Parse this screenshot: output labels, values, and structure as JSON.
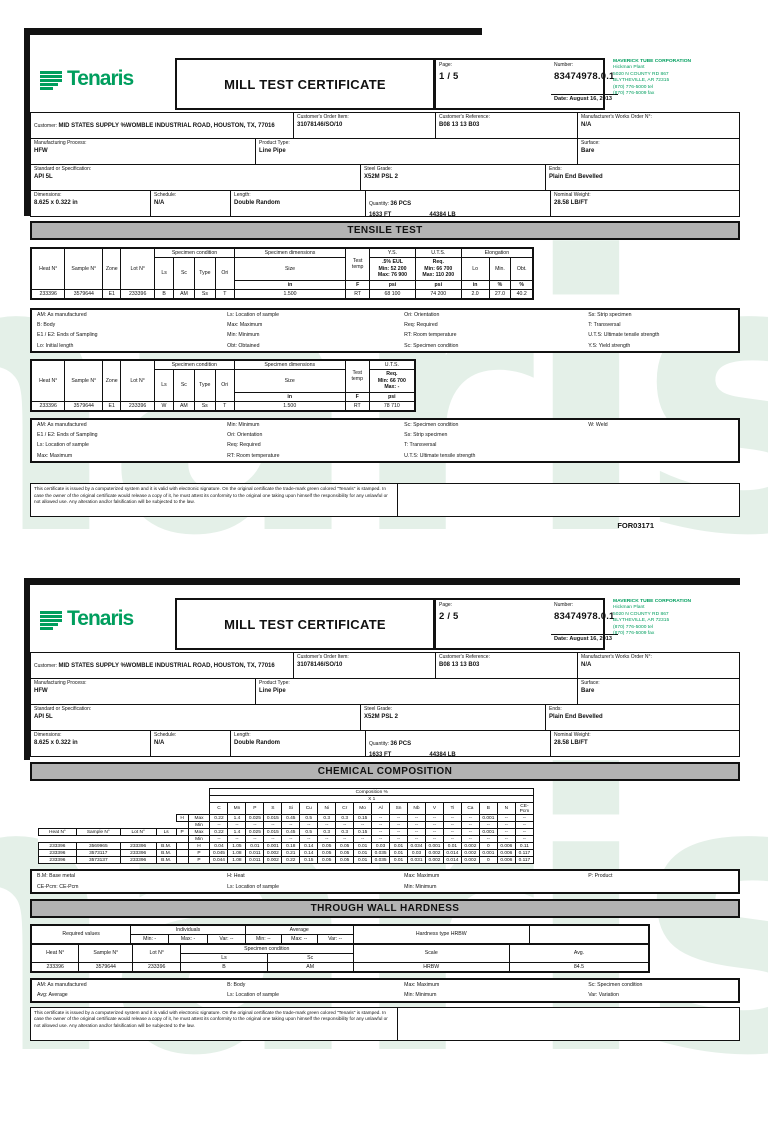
{
  "watermark": "Tenaris",
  "company": {
    "name": "Tenaris",
    "address": [
      "MAVERICK TUBE CORPORATION",
      "Hickman Plant",
      "5020 N COUNTY RD 867",
      "BLYTHEVILLE, AR 72315",
      "(870) 776-5000 tel",
      "(870) 776-5009 fax"
    ]
  },
  "cert": {
    "title": "MILL TEST CERTIFICATE",
    "number_label": "Number:",
    "number": "83474978.0.1",
    "page_label": "Page:",
    "page1": "1 / 5",
    "page2": "2 / 5",
    "date": "Date: August 16, 2013"
  },
  "info": {
    "customer_label": "Customer: ",
    "customer": "MID STATES SUPPLY %WOMBLE INDUSTRIAL ROAD, HOUSTON, TX, 77016",
    "order_item_label": "Customer's Order Item:",
    "order_item": "31078146/SO/10",
    "reference_label": "Customer's Reference:",
    "reference": "B08 13 13 B03",
    "works_order_label": "Manufacturer's Works Order N°:",
    "works_order": "N/A",
    "process_label": "Manufacturing Process:",
    "process": "HFW",
    "product_type_label": "Product Type:",
    "product_type": "Line Pipe",
    "surface_label": "Surface:",
    "surface": "Bare",
    "spec_label": "Standard or Specification:",
    "spec": "API 5L",
    "grade_label": "Steel Grade:",
    "grade": "X52M PSL 2",
    "ends_label": "Ends:",
    "ends": "Plain End Bevelled",
    "dimensions_label": "Dimensions:",
    "dimensions": "8.625 x 0.322 in",
    "schedule_label": "Schedule:",
    "schedule": "N/A",
    "length_label": "Length:",
    "length": "Double Random",
    "quantity_label": "Quantity: ",
    "quantity_pcs": "36 PCS",
    "quantity_ft": "1633 FT",
    "quantity_lb": "44384 LB",
    "weight_label": "Nominal Weight:",
    "weight": "28.58 LB/FT"
  },
  "labels": {
    "heat": "Heat N°",
    "sample": "Sample N°",
    "zone": "Zone",
    "lot": "Lot N°",
    "spec_cond": "Specimen condition",
    "spec_dim": "Specimen dimensions",
    "test_temp": "Test temp",
    "ls": "Ls",
    "sc": "Sc",
    "type": "Type",
    "ori": "Ori",
    "size": "Size",
    "ys": "Y.S.",
    "uts": "U.T.S.",
    "elong": "Elongation",
    "lo": "Lo",
    "min_dot": "Min.",
    "obt": "Obt.",
    "h": "H",
    "p": "P",
    "max": "Max",
    "min": "Min",
    "scale": "Scale",
    "avg": "Avg."
  },
  "tensile1": {
    "title": "TENSILE TEST",
    "ys_sub": ".5% EUL",
    "ys_min": "Min: 52 200",
    "ys_max": "Max: 76 900",
    "uts_sub": "Req.",
    "uts_min": "Min: 66 700",
    "uts_max": "Max: 110 200",
    "units": [
      "in",
      "F",
      "psi",
      "psi",
      "in",
      "%",
      "%"
    ],
    "rows": [
      [
        "233396",
        "3579644",
        "E1",
        "233396",
        "B",
        "AM",
        "Ss",
        "T",
        "1.500",
        "RT",
        "68 100",
        "74 200",
        "2.0",
        "27.0",
        "40.2"
      ]
    ],
    "legend": [
      [
        "AM: As manufactured",
        "Ls: Location of sample",
        "Ori: Orientation",
        "Ss: Strip specimen"
      ],
      [
        "B: Body",
        "Max: Maximum",
        "Req: Required",
        "T: Transversal"
      ],
      [
        "E1 / E2:  Ends of Sampling",
        "Min: Minimum",
        "RT: Room temperature",
        "U.T.S: Ultimate tensile strength"
      ],
      [
        "Lo: Initial length",
        "Obt: Obtained",
        "Sc: Specimen condition",
        "Y.S: Yield strength"
      ]
    ]
  },
  "tensile2": {
    "uts_sub": "Req.",
    "uts_min": "Min: 66 700",
    "uts_max": "Max: -",
    "units": [
      "in",
      "F",
      "psi"
    ],
    "rows": [
      [
        "233396",
        "3579644",
        "E1",
        "233396",
        "W",
        "AM",
        "Ss",
        "T",
        "1.500",
        "RT",
        "78 710"
      ]
    ],
    "legend": [
      [
        "AM: As manufactured",
        "Min: Minimum",
        "Sc: Specimen condition",
        "W: Weld"
      ],
      [
        "E1 / E2:  Ends of Sampling",
        "Ori: Orientation",
        "Ss: Strip specimen",
        ""
      ],
      [
        "Ls: Location of sample",
        "Req: Required",
        "T: Transversal",
        ""
      ],
      [
        "Max: Maximum",
        "RT: Room temperature",
        "U.T.S: Ultimate tensile strength",
        ""
      ]
    ]
  },
  "chem": {
    "title": "CHEMICAL COMPOSITION",
    "comp": "Composition %",
    "comp_sub": "X 1",
    "elements": [
      "C",
      "Mn",
      "P",
      "S",
      "Si",
      "Cu",
      "Ni",
      "Cr",
      "Mo",
      "Al",
      "Sn",
      "Nb",
      "V",
      "Ti",
      "Ca",
      "B",
      "N",
      "CE-Pcm"
    ],
    "req_h_max": [
      "0.22",
      "1.4",
      "0.025",
      "0.015",
      "0.45",
      "0.5",
      "0.3",
      "0.3",
      "0.15",
      "--",
      "--",
      "--",
      "--",
      "--",
      "--",
      "0.001",
      "--",
      "--"
    ],
    "req_min": [
      "--",
      "--",
      "--",
      "--",
      "--",
      "--",
      "--",
      "--",
      "--",
      "--",
      "--",
      "--",
      "--",
      "--",
      "--",
      "--",
      "--",
      "--"
    ],
    "req_p_max": [
      "0.22",
      "1.4",
      "0.025",
      "0.015",
      "0.45",
      "0.5",
      "0.3",
      "0.3",
      "0.15",
      "--",
      "--",
      "--",
      "--",
      "--",
      "--",
      "0.001",
      "--",
      "--"
    ],
    "rows": [
      [
        "233396",
        "3569965",
        "233396",
        "B.M.",
        "",
        "H",
        "0.04",
        "1.05",
        "0.01",
        "0.001",
        "0.18",
        "0.14",
        "0.05",
        "0.05",
        "0.01",
        "0.03",
        "0.01",
        "0.034",
        "0.001",
        "0.01",
        "0.002",
        "0",
        "0.006",
        "0.11"
      ],
      [
        "233396",
        "3573117",
        "233396",
        "B.M.",
        "",
        "P",
        "0.045",
        "1.08",
        "0.011",
        "0.002",
        "0.21",
        "0.14",
        "0.05",
        "0.05",
        "0.01",
        "0.035",
        "0.01",
        "0.03",
        "0.002",
        "0.014",
        "0.002",
        "0.001",
        "0.006",
        "0.117"
      ],
      [
        "233396",
        "3573137",
        "233396",
        "B.M.",
        "",
        "P",
        "0.044",
        "1.08",
        "0.011",
        "0.002",
        "0.22",
        "0.15",
        "0.05",
        "0.05",
        "0.01",
        "0.035",
        "0.01",
        "0.031",
        "0.002",
        "0.014",
        "0.002",
        "0",
        "0.006",
        "0.117"
      ]
    ],
    "legend": [
      [
        "B.M: Base metal",
        "H: Heat",
        "Max: Maximum",
        "P: Product"
      ],
      [
        "CE-Pcm: CE-Pcm",
        "Ls: Location of sample",
        "Min: Minimum",
        ""
      ]
    ]
  },
  "hardness": {
    "title": "THROUGH WALL HARDNESS",
    "required": "Required values",
    "individuals": "Individuals",
    "average": "Average",
    "type": "Hardness type HRBW",
    "ind_cells": [
      "Min: -",
      "Max: -",
      "Var: --"
    ],
    "avg_cells": [
      "Min: --",
      "Max: --",
      "Var: --"
    ],
    "rows": [
      [
        "233396",
        "3579644",
        "233396",
        "B",
        "AM",
        "HRBW",
        "84.5"
      ]
    ],
    "legend": [
      [
        "AM: As manufactured",
        "B: Body",
        "Max: Maximum",
        "Sc: Specimen condition"
      ],
      [
        "Avg: Average",
        "Ls: Location of sample",
        "Min: Minimum",
        "Var: Variation"
      ]
    ]
  },
  "footer": {
    "text": "This certificate is issued by a computerized system and it is valid with electronic signature.  On the original certificate the trade-mark green colored \"Tenaris\" is stamped.  In case the owner of the original certificate would release a copy of it, he must attest its conformity to the original one taking upon himself the responsibility for any unlawful or not allowed use.  Any alteration and/or falsification will be subjected to the law.",
    "form_code": "FOR03171"
  }
}
